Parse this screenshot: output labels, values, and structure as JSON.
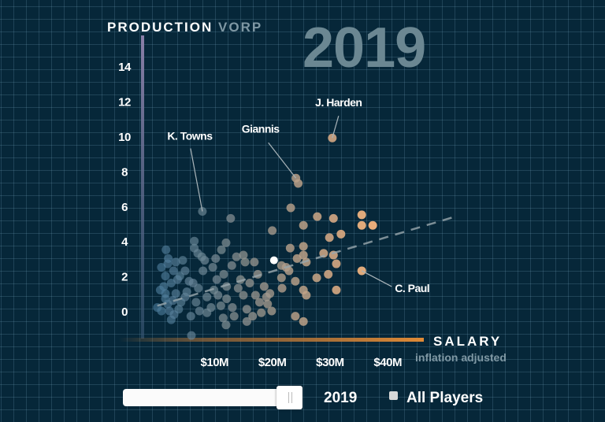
{
  "header": {
    "y_title": "PRODUCTION",
    "y_title_sub": "VORP",
    "year_display": "2019",
    "x_title": "SALARY",
    "x_title_sub": "inflation adjusted"
  },
  "controls": {
    "year_slider_value": 2019,
    "year_slider_at_end": true,
    "year_label": "2019",
    "all_players_label": "All Players",
    "all_players_checked": false
  },
  "colors": {
    "background": "#062739",
    "low_salary": "#4b7d9e",
    "high_salary": "#f5b47e",
    "highlight": "#ffffff",
    "trend": "#9aa8ae",
    "x_axis_bar": "#d9893a",
    "y_axis_bar": "#8a7fa8"
  },
  "chart_data": {
    "type": "scatter",
    "xlabel": "SALARY",
    "xlabel_sub": "inflation adjusted",
    "ylabel": "PRODUCTION VORP",
    "x_ticks": [
      10,
      20,
      30,
      40
    ],
    "x_tick_labels": [
      "$10M",
      "$20M",
      "$30M",
      "$40M"
    ],
    "y_ticks": [
      0,
      2,
      4,
      6,
      8,
      10,
      12,
      14
    ],
    "y_tick_labels": [
      "0",
      "2",
      "4",
      "6",
      "8",
      "10",
      "12",
      "14"
    ],
    "xlim": [
      0,
      52
    ],
    "ylim": [
      -1.5,
      15
    ],
    "grid": true,
    "trend_line": [
      [
        0.1,
        0.3
      ],
      [
        51.7,
        5.4
      ]
    ],
    "highlighted_point": [
      20.3,
      2.9
    ],
    "annotations": [
      {
        "label": "J. Harden",
        "point": [
          30.4,
          9.9
        ]
      },
      {
        "label": "Giannis",
        "point": [
          24.1,
          7.6
        ]
      },
      {
        "label": "K. Towns",
        "point": [
          7.9,
          5.7
        ]
      },
      {
        "label": "C. Paul",
        "point": [
          35.5,
          2.3
        ]
      }
    ],
    "points": [
      [
        30.4,
        9.9
      ],
      [
        24.1,
        7.6
      ],
      [
        24.5,
        7.3
      ],
      [
        7.9,
        5.7
      ],
      [
        35.5,
        2.3
      ],
      [
        12.8,
        5.3
      ],
      [
        20.0,
        4.6
      ],
      [
        23.2,
        5.9
      ],
      [
        27.8,
        5.4
      ],
      [
        30.6,
        5.3
      ],
      [
        35.5,
        5.5
      ],
      [
        35.5,
        4.9
      ],
      [
        37.4,
        4.9
      ],
      [
        25.4,
        4.9
      ],
      [
        29.9,
        4.2
      ],
      [
        31.9,
        4.4
      ],
      [
        23.1,
        3.6
      ],
      [
        25.4,
        3.7
      ],
      [
        25.4,
        3.2
      ],
      [
        24.3,
        3.0
      ],
      [
        25.9,
        2.8
      ],
      [
        28.9,
        3.3
      ],
      [
        30.6,
        3.2
      ],
      [
        31.1,
        2.7
      ],
      [
        21.6,
        2.6
      ],
      [
        22.4,
        2.5
      ],
      [
        22.9,
        2.3
      ],
      [
        21.6,
        1.9
      ],
      [
        24.0,
        1.7
      ],
      [
        27.7,
        1.9
      ],
      [
        29.7,
        2.1
      ],
      [
        21.7,
        1.3
      ],
      [
        25.4,
        1.2
      ],
      [
        25.9,
        0.9
      ],
      [
        31.1,
        1.2
      ],
      [
        24.0,
        -0.3
      ],
      [
        25.4,
        -0.6
      ],
      [
        6.5,
        4.0
      ],
      [
        6.5,
        3.6
      ],
      [
        7.1,
        3.3
      ],
      [
        1.6,
        3.5
      ],
      [
        11.2,
        3.5
      ],
      [
        12.0,
        3.9
      ],
      [
        13.8,
        3.1
      ],
      [
        15.0,
        3.2
      ],
      [
        15.3,
        2.8
      ],
      [
        16.9,
        2.8
      ],
      [
        17.5,
        2.1
      ],
      [
        13.0,
        2.6
      ],
      [
        9.7,
        2.5
      ],
      [
        8.0,
        2.3
      ],
      [
        11.6,
        2.1
      ],
      [
        16.1,
        1.6
      ],
      [
        18.6,
        1.4
      ],
      [
        19.6,
        1.0
      ],
      [
        17.1,
        0.9
      ],
      [
        15.0,
        0.9
      ],
      [
        14.1,
        1.3
      ],
      [
        12.1,
        1.4
      ],
      [
        10.6,
        0.9
      ],
      [
        12.1,
        0.7
      ],
      [
        19.0,
        0.8
      ],
      [
        19.2,
        0.4
      ],
      [
        19.9,
        0.0
      ],
      [
        18.1,
        -0.1
      ],
      [
        15.6,
        0.1
      ],
      [
        13.4,
        -0.3
      ],
      [
        12.0,
        -0.8
      ],
      [
        15.6,
        -0.6
      ],
      [
        11.1,
        0.3
      ],
      [
        9.4,
        0.2
      ],
      [
        8.7,
        0.8
      ],
      [
        7.2,
        1.3
      ],
      [
        5.6,
        1.7
      ],
      [
        4.0,
        2.0
      ],
      [
        4.9,
        2.3
      ],
      [
        1.9,
        2.7
      ],
      [
        3.3,
        2.8
      ],
      [
        1.5,
        2.0
      ],
      [
        2.5,
        1.6
      ],
      [
        1.5,
        1.0
      ],
      [
        3.3,
        1.0
      ],
      [
        4.9,
        0.8
      ],
      [
        0.1,
        0.2
      ],
      [
        1.9,
        0.4
      ],
      [
        3.8,
        0.1
      ],
      [
        5.9,
        -0.3
      ],
      [
        2.5,
        -0.5
      ],
      [
        7.4,
        0.0
      ],
      [
        8.7,
        -0.1
      ],
      [
        6.0,
        -1.4
      ],
      [
        0.8,
        0.0
      ],
      [
        1.5,
        0.7
      ],
      [
        2.2,
        0.0
      ],
      [
        0.8,
        2.5
      ],
      [
        2.9,
        2.3
      ],
      [
        4.2,
        0.5
      ],
      [
        6.3,
        1.6
      ],
      [
        8.3,
        2.9
      ],
      [
        10.4,
        1.8
      ],
      [
        13.1,
        0.2
      ],
      [
        14.5,
        1.8
      ],
      [
        1.2,
        1.4
      ],
      [
        2.8,
        0.6
      ],
      [
        3.6,
        1.8
      ],
      [
        5.2,
        1.1
      ],
      [
        0.6,
        1.2
      ],
      [
        2.0,
        3.0
      ],
      [
        6.8,
        0.5
      ],
      [
        9.9,
        1.2
      ],
      [
        11.5,
        -0.4
      ],
      [
        16.6,
        -0.3
      ],
      [
        17.8,
        0.5
      ],
      [
        3.0,
        -0.2
      ],
      [
        4.5,
        2.9
      ],
      [
        7.8,
        3.1
      ],
      [
        10.2,
        3.0
      ]
    ]
  }
}
